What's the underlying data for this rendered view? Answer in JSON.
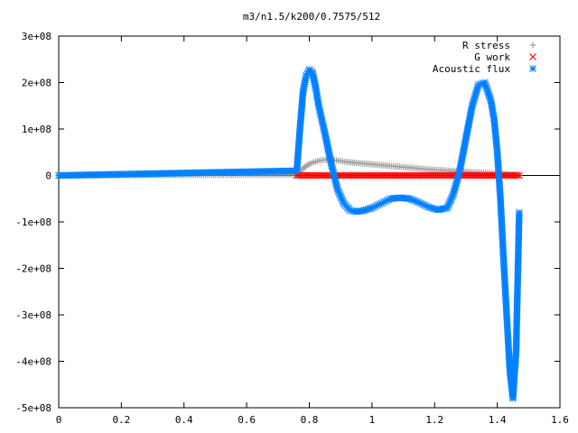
{
  "chart_data": {
    "type": "scatter",
    "title": "m3/n1.5/k200/0.7575/512",
    "xlabel": "",
    "ylabel": "",
    "xlim": [
      0,
      1.6
    ],
    "ylim": [
      -500000000,
      300000000
    ],
    "x_ticks": [
      0,
      0.2,
      0.4,
      0.6,
      0.8,
      1,
      1.2,
      1.4,
      1.6
    ],
    "x_tick_labels": [
      "0",
      "0.2",
      "0.4",
      "0.6",
      "0.8",
      "1",
      "1.2",
      "1.4",
      "1.6"
    ],
    "y_ticks": [
      300000000,
      200000000,
      100000000,
      0,
      -100000000,
      -200000000,
      -300000000,
      -400000000,
      -500000000
    ],
    "y_tick_labels": [
      "3e+08",
      "2e+08",
      "1e+08",
      "0",
      "-1e+08",
      "-2e+08",
      "-3e+08",
      "-4e+08",
      "-5e+08"
    ],
    "grid": false,
    "legend_position": "top-right",
    "series": [
      {
        "name": "R stress",
        "marker": "plus",
        "color": "#a0a0a0",
        "x": [
          0,
          0.76,
          0.78,
          0.8,
          0.82,
          0.84,
          0.86,
          0.88,
          0.9,
          0.92,
          0.95,
          1.0,
          1.05,
          1.1,
          1.15,
          1.2,
          1.25,
          1.3,
          1.35,
          1.4,
          1.45,
          1.47
        ],
        "y": [
          0,
          2000000,
          15000000,
          25000000,
          30000000,
          33000000,
          34000000,
          33000000,
          31000000,
          29000000,
          27000000,
          24000000,
          21000000,
          18000000,
          15000000,
          12000000,
          10000000,
          8000000,
          6000000,
          4000000,
          2000000,
          1000000
        ]
      },
      {
        "name": "G work",
        "marker": "cross",
        "color": "#ff0000",
        "x": [
          0.76,
          0.8,
          0.85,
          0.9,
          0.95,
          1.0,
          1.05,
          1.1,
          1.15,
          1.2,
          1.25,
          1.3,
          1.35,
          1.4,
          1.45,
          1.47
        ],
        "y": [
          0,
          0,
          0,
          0,
          0,
          0,
          0,
          0,
          0,
          0,
          0,
          0,
          0,
          0,
          0,
          0
        ]
      },
      {
        "name": "Acoustic flux",
        "marker": "star",
        "color": "#0080ff",
        "x": [
          0,
          0.76,
          0.77,
          0.78,
          0.79,
          0.8,
          0.81,
          0.82,
          0.83,
          0.85,
          0.87,
          0.89,
          0.91,
          0.93,
          0.95,
          0.97,
          1.0,
          1.03,
          1.06,
          1.09,
          1.12,
          1.15,
          1.18,
          1.21,
          1.24,
          1.26,
          1.28,
          1.3,
          1.32,
          1.34,
          1.36,
          1.38,
          1.39,
          1.4,
          1.41,
          1.42,
          1.43,
          1.44,
          1.45,
          1.46,
          1.47
        ],
        "y": [
          0,
          10000000,
          100000000,
          180000000,
          215000000,
          228000000,
          222000000,
          190000000,
          150000000,
          90000000,
          25000000,
          -30000000,
          -60000000,
          -75000000,
          -78000000,
          -76000000,
          -70000000,
          -60000000,
          -50000000,
          -48000000,
          -50000000,
          -58000000,
          -68000000,
          -74000000,
          -70000000,
          -40000000,
          10000000,
          80000000,
          150000000,
          195000000,
          200000000,
          160000000,
          120000000,
          50000000,
          -50000000,
          -180000000,
          -300000000,
          -420000000,
          -480000000,
          -380000000,
          -80000000
        ]
      }
    ]
  }
}
